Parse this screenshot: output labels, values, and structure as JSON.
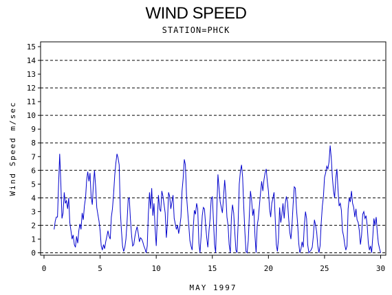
{
  "chart_data": {
    "type": "line",
    "title": "WIND SPEED",
    "subtitle": "STATION=PHCK",
    "xlabel": "MAY 1997",
    "ylabel": "Wind Speed m/sec",
    "xlim": [
      0,
      30
    ],
    "ylim": [
      0,
      15.3
    ],
    "xticks": [
      0,
      5,
      10,
      15,
      20,
      25,
      30
    ],
    "yticks": [
      0,
      1,
      2,
      3,
      4,
      5,
      6,
      7,
      8,
      9,
      10,
      11,
      12,
      13,
      14,
      15
    ],
    "grid_lines_y": [
      2,
      4,
      6,
      8,
      10,
      12,
      14
    ],
    "line_color": "#0000cc",
    "series": [
      {
        "values": [
          [
            0.9,
            1.7
          ],
          [
            1.0,
            2.3
          ],
          [
            1.1,
            2.6
          ],
          [
            1.2,
            2.6
          ],
          [
            1.3,
            5.0
          ],
          [
            1.4,
            7.2
          ],
          [
            1.5,
            5.0
          ],
          [
            1.6,
            2.5
          ],
          [
            1.7,
            2.9
          ],
          [
            1.8,
            4.4
          ],
          [
            1.9,
            3.6
          ],
          [
            2.0,
            3.8
          ],
          [
            2.1,
            3.2
          ],
          [
            2.2,
            4.0
          ],
          [
            2.3,
            2.2
          ],
          [
            2.4,
            1.6
          ],
          [
            2.5,
            1.0
          ],
          [
            2.6,
            1.3
          ],
          [
            2.7,
            0.6
          ],
          [
            2.8,
            0.4
          ],
          [
            2.9,
            1.2
          ],
          [
            3.0,
            0.7
          ],
          [
            3.1,
            1.6
          ],
          [
            3.2,
            2.1
          ],
          [
            3.3,
            1.7
          ],
          [
            3.4,
            2.9
          ],
          [
            3.5,
            2.4
          ],
          [
            3.6,
            3.4
          ],
          [
            3.7,
            4.0
          ],
          [
            3.8,
            5.3
          ],
          [
            3.9,
            5.9
          ],
          [
            4.0,
            5.2
          ],
          [
            4.1,
            5.8
          ],
          [
            4.2,
            4.1
          ],
          [
            4.3,
            3.5
          ],
          [
            4.4,
            5.0
          ],
          [
            4.5,
            6.0
          ],
          [
            4.6,
            4.8
          ],
          [
            4.7,
            3.3
          ],
          [
            4.8,
            2.8
          ],
          [
            4.9,
            2.3
          ],
          [
            5.0,
            1.6
          ],
          [
            5.1,
            0.5
          ],
          [
            5.2,
            0.2
          ],
          [
            5.3,
            0.6
          ],
          [
            5.4,
            0.3
          ],
          [
            5.5,
            0.8
          ],
          [
            5.6,
            1.2
          ],
          [
            5.7,
            1.6
          ],
          [
            5.8,
            1.2
          ],
          [
            5.9,
            1.0
          ],
          [
            6.0,
            2.6
          ],
          [
            6.1,
            3.2
          ],
          [
            6.2,
            4.3
          ],
          [
            6.3,
            5.6
          ],
          [
            6.4,
            6.5
          ],
          [
            6.5,
            7.2
          ],
          [
            6.6,
            6.9
          ],
          [
            6.7,
            6.4
          ],
          [
            6.8,
            3.0
          ],
          [
            6.9,
            1.6
          ],
          [
            7.0,
            0.5
          ],
          [
            7.1,
            0.1
          ],
          [
            7.2,
            0.4
          ],
          [
            7.3,
            1.0
          ],
          [
            7.4,
            2.2
          ],
          [
            7.5,
            3.9
          ],
          [
            7.6,
            4.0
          ],
          [
            7.7,
            2.5
          ],
          [
            7.8,
            1.3
          ],
          [
            7.9,
            0.5
          ],
          [
            8.0,
            0.6
          ],
          [
            8.1,
            1.2
          ],
          [
            8.2,
            1.6
          ],
          [
            8.3,
            1.9
          ],
          [
            8.4,
            1.4
          ],
          [
            8.5,
            0.8
          ],
          [
            8.6,
            1.1
          ],
          [
            8.7,
            1.0
          ],
          [
            8.8,
            0.8
          ],
          [
            8.9,
            0.5
          ],
          [
            9.0,
            0.3
          ],
          [
            9.1,
            0.0
          ],
          [
            9.2,
            0.5
          ],
          [
            9.3,
            2.8
          ],
          [
            9.4,
            4.4
          ],
          [
            9.5,
            3.2
          ],
          [
            9.6,
            4.7
          ],
          [
            9.7,
            2.7
          ],
          [
            9.8,
            3.6
          ],
          [
            9.9,
            1.8
          ],
          [
            10.0,
            0.5
          ],
          [
            10.1,
            2.5
          ],
          [
            10.2,
            4.2
          ],
          [
            10.3,
            3.2
          ],
          [
            10.4,
            3.0
          ],
          [
            10.5,
            4.5
          ],
          [
            10.6,
            4.1
          ],
          [
            10.7,
            3.5
          ],
          [
            10.8,
            2.9
          ],
          [
            10.9,
            1.1
          ],
          [
            11.0,
            2.2
          ],
          [
            11.1,
            4.4
          ],
          [
            11.2,
            4.1
          ],
          [
            11.3,
            3.2
          ],
          [
            11.4,
            3.7
          ],
          [
            11.5,
            4.2
          ],
          [
            11.6,
            2.5
          ],
          [
            11.7,
            2.1
          ],
          [
            11.8,
            1.7
          ],
          [
            11.9,
            2.0
          ],
          [
            12.0,
            1.4
          ],
          [
            12.1,
            1.9
          ],
          [
            12.2,
            2.6
          ],
          [
            12.3,
            4.5
          ],
          [
            12.4,
            5.4
          ],
          [
            12.5,
            6.8
          ],
          [
            12.6,
            6.4
          ],
          [
            12.7,
            4.2
          ],
          [
            12.8,
            3.0
          ],
          [
            12.9,
            2.0
          ],
          [
            13.0,
            0.9
          ],
          [
            13.1,
            0.5
          ],
          [
            13.2,
            0.2
          ],
          [
            13.3,
            1.8
          ],
          [
            13.4,
            3.1
          ],
          [
            13.5,
            2.8
          ],
          [
            13.6,
            3.6
          ],
          [
            13.7,
            3.2
          ],
          [
            13.8,
            0.7
          ],
          [
            13.9,
            0.0
          ],
          [
            14.0,
            1.2
          ],
          [
            14.1,
            2.7
          ],
          [
            14.2,
            3.3
          ],
          [
            14.3,
            3.2
          ],
          [
            14.4,
            2.0
          ],
          [
            14.5,
            1.1
          ],
          [
            14.6,
            0.4
          ],
          [
            14.7,
            1.6
          ],
          [
            14.8,
            2.5
          ],
          [
            14.9,
            3.9
          ],
          [
            15.0,
            4.1
          ],
          [
            15.1,
            2.3
          ],
          [
            15.2,
            0.6
          ],
          [
            15.3,
            0.0
          ],
          [
            15.4,
            3.2
          ],
          [
            15.5,
            5.7
          ],
          [
            15.6,
            4.7
          ],
          [
            15.7,
            3.7
          ],
          [
            15.8,
            3.3
          ],
          [
            15.9,
            2.9
          ],
          [
            16.0,
            4.1
          ],
          [
            16.1,
            5.3
          ],
          [
            16.2,
            4.3
          ],
          [
            16.3,
            2.6
          ],
          [
            16.4,
            2.0
          ],
          [
            16.5,
            0.6
          ],
          [
            16.6,
            0.0
          ],
          [
            16.7,
            2.6
          ],
          [
            16.8,
            3.5
          ],
          [
            16.9,
            2.9
          ],
          [
            17.0,
            1.5
          ],
          [
            17.1,
            0.2
          ],
          [
            17.2,
            0.0
          ],
          [
            17.3,
            2.2
          ],
          [
            17.4,
            5.0
          ],
          [
            17.5,
            5.9
          ],
          [
            17.6,
            6.4
          ],
          [
            17.7,
            5.5
          ],
          [
            17.8,
            3.4
          ],
          [
            17.9,
            1.5
          ],
          [
            18.0,
            0.1
          ],
          [
            18.1,
            0.0
          ],
          [
            18.2,
            0.9
          ],
          [
            18.3,
            2.8
          ],
          [
            18.4,
            4.5
          ],
          [
            18.5,
            3.8
          ],
          [
            18.6,
            2.7
          ],
          [
            18.7,
            3.2
          ],
          [
            18.8,
            1.2
          ],
          [
            18.9,
            0.0
          ],
          [
            19.0,
            2.0
          ],
          [
            19.1,
            2.5
          ],
          [
            19.2,
            3.5
          ],
          [
            19.3,
            4.4
          ],
          [
            19.4,
            5.2
          ],
          [
            19.5,
            4.5
          ],
          [
            19.6,
            5.3
          ],
          [
            19.7,
            5.8
          ],
          [
            19.8,
            6.1
          ],
          [
            19.9,
            5.2
          ],
          [
            20.0,
            4.5
          ],
          [
            20.1,
            3.2
          ],
          [
            20.2,
            2.6
          ],
          [
            20.3,
            3.6
          ],
          [
            20.4,
            4.0
          ],
          [
            20.5,
            4.4
          ],
          [
            20.6,
            2.6
          ],
          [
            20.7,
            0.6
          ],
          [
            20.8,
            0.1
          ],
          [
            20.9,
            1.1
          ],
          [
            21.0,
            3.3
          ],
          [
            21.1,
            2.2
          ],
          [
            21.2,
            2.8
          ],
          [
            21.3,
            3.6
          ],
          [
            21.4,
            2.5
          ],
          [
            21.5,
            3.6
          ],
          [
            21.6,
            4.1
          ],
          [
            21.7,
            3.7
          ],
          [
            21.8,
            2.5
          ],
          [
            21.9,
            1.5
          ],
          [
            22.0,
            1.0
          ],
          [
            22.1,
            2.0
          ],
          [
            22.2,
            3.5
          ],
          [
            22.3,
            4.8
          ],
          [
            22.4,
            4.7
          ],
          [
            22.5,
            3.2
          ],
          [
            22.6,
            2.1
          ],
          [
            22.7,
            0.7
          ],
          [
            22.8,
            0.0
          ],
          [
            22.9,
            0.3
          ],
          [
            23.0,
            0.8
          ],
          [
            23.1,
            0.4
          ],
          [
            23.2,
            2.0
          ],
          [
            23.3,
            3.0
          ],
          [
            23.4,
            2.5
          ],
          [
            23.5,
            0.6
          ],
          [
            23.6,
            0.0
          ],
          [
            23.7,
            0.1
          ],
          [
            23.8,
            0.2
          ],
          [
            23.9,
            0.4
          ],
          [
            24.0,
            1.2
          ],
          [
            24.1,
            2.4
          ],
          [
            24.2,
            2.0
          ],
          [
            24.3,
            1.5
          ],
          [
            24.4,
            0.5
          ],
          [
            24.5,
            0.0
          ],
          [
            24.6,
            0.5
          ],
          [
            24.7,
            2.1
          ],
          [
            24.8,
            3.4
          ],
          [
            24.9,
            4.1
          ],
          [
            25.0,
            5.5
          ],
          [
            25.1,
            5.8
          ],
          [
            25.2,
            6.3
          ],
          [
            25.3,
            6.1
          ],
          [
            25.4,
            6.6
          ],
          [
            25.5,
            7.8
          ],
          [
            25.6,
            6.9
          ],
          [
            25.7,
            5.5
          ],
          [
            25.8,
            4.5
          ],
          [
            25.9,
            4.0
          ],
          [
            26.0,
            5.4
          ],
          [
            26.1,
            6.1
          ],
          [
            26.2,
            4.6
          ],
          [
            26.3,
            3.4
          ],
          [
            26.4,
            3.6
          ],
          [
            26.5,
            3.1
          ],
          [
            26.6,
            1.6
          ],
          [
            26.7,
            1.2
          ],
          [
            26.8,
            0.6
          ],
          [
            26.9,
            0.2
          ],
          [
            27.0,
            0.5
          ],
          [
            27.1,
            3.2
          ],
          [
            27.2,
            4.0
          ],
          [
            27.3,
            3.7
          ],
          [
            27.4,
            4.5
          ],
          [
            27.5,
            3.6
          ],
          [
            27.6,
            3.3
          ],
          [
            27.7,
            2.6
          ],
          [
            27.8,
            3.2
          ],
          [
            27.9,
            2.4
          ],
          [
            28.0,
            2.2
          ],
          [
            28.1,
            1.6
          ],
          [
            28.2,
            0.6
          ],
          [
            28.3,
            1.3
          ],
          [
            28.4,
            2.8
          ],
          [
            28.5,
            3.0
          ],
          [
            28.6,
            2.5
          ],
          [
            28.7,
            2.7
          ],
          [
            28.8,
            2.0
          ],
          [
            28.9,
            0.7
          ],
          [
            29.0,
            0.2
          ],
          [
            29.1,
            0.5
          ],
          [
            29.2,
            0.0
          ],
          [
            29.3,
            1.2
          ],
          [
            29.4,
            2.5
          ],
          [
            29.5,
            2.0
          ],
          [
            29.6,
            2.6
          ],
          [
            29.7,
            1.5
          ],
          [
            29.8,
            0.7
          ],
          [
            29.9,
            0.3
          ],
          [
            30.0,
            0.0
          ]
        ]
      }
    ]
  }
}
